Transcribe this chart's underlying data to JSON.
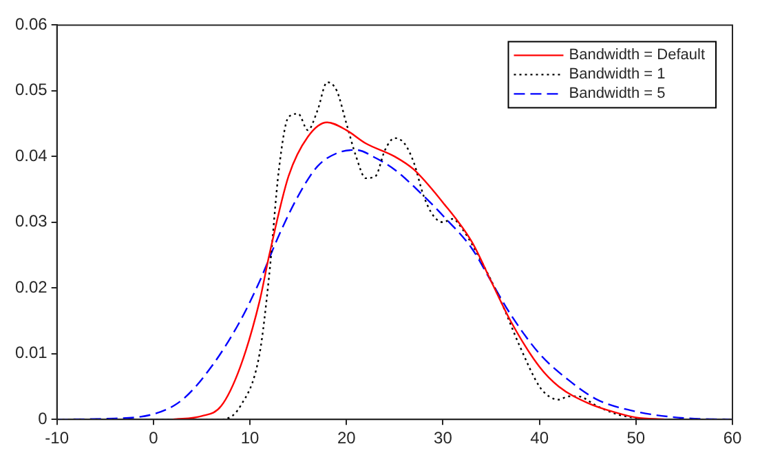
{
  "chart_data": {
    "type": "line",
    "xlim": [
      -10,
      60
    ],
    "xticks": [
      -10,
      0,
      10,
      20,
      30,
      40,
      50,
      60
    ],
    "ylim": [
      0,
      0.06
    ],
    "yticks": [
      0,
      0.01,
      0.02,
      0.03,
      0.04,
      0.05,
      0.06
    ],
    "grid": false,
    "legend": "top right",
    "marker": "none",
    "series": [
      {
        "name": "Bandwidth = Default",
        "color": "#ff0000",
        "line_style": "solid",
        "x": [
          2,
          5,
          7,
          9,
          11,
          12,
          14,
          16,
          18,
          20,
          22,
          25,
          27,
          30,
          33,
          35,
          37,
          40,
          42,
          45,
          48,
          50,
          53
        ],
        "values": [
          0,
          0.0005,
          0.002,
          0.008,
          0.018,
          0.025,
          0.037,
          0.043,
          0.0452,
          0.044,
          0.042,
          0.04,
          0.038,
          0.033,
          0.027,
          0.021,
          0.015,
          0.008,
          0.005,
          0.0025,
          0.001,
          0.0003,
          0
        ]
      },
      {
        "name": "Bandwidth = 1",
        "color": "#000000",
        "line_style": "dotted",
        "x": [
          -10,
          7,
          9,
          11,
          12,
          13,
          14,
          15,
          16,
          17,
          18,
          19,
          20,
          21,
          22,
          23,
          24,
          25,
          26,
          27,
          28,
          29,
          30,
          31,
          32,
          34,
          36,
          38,
          40,
          41,
          42,
          43,
          44,
          46,
          48,
          50,
          52,
          60
        ],
        "values": [
          0,
          0,
          0.002,
          0.01,
          0.022,
          0.038,
          0.046,
          0.0465,
          0.044,
          0.047,
          0.0513,
          0.05,
          0.045,
          0.04,
          0.0367,
          0.037,
          0.041,
          0.0428,
          0.042,
          0.039,
          0.034,
          0.031,
          0.03,
          0.0305,
          0.029,
          0.024,
          0.018,
          0.011,
          0.005,
          0.0035,
          0.003,
          0.0035,
          0.0035,
          0.002,
          0.0008,
          0.0002,
          0,
          0
        ]
      },
      {
        "name": "Bandwidth = 5",
        "color": "#0000ff",
        "line_style": "dashed",
        "x": [
          -10,
          -5,
          0,
          3,
          6,
          9,
          11,
          13,
          15,
          17,
          19,
          21,
          23,
          25,
          28,
          30,
          33,
          35,
          37,
          40,
          43,
          46,
          50,
          55,
          60
        ],
        "values": [
          0,
          0.0001,
          0.0008,
          0.003,
          0.008,
          0.015,
          0.021,
          0.028,
          0.034,
          0.0385,
          0.0405,
          0.041,
          0.0398,
          0.038,
          0.034,
          0.031,
          0.026,
          0.021,
          0.016,
          0.01,
          0.006,
          0.003,
          0.0012,
          0.0002,
          0
        ]
      }
    ]
  }
}
